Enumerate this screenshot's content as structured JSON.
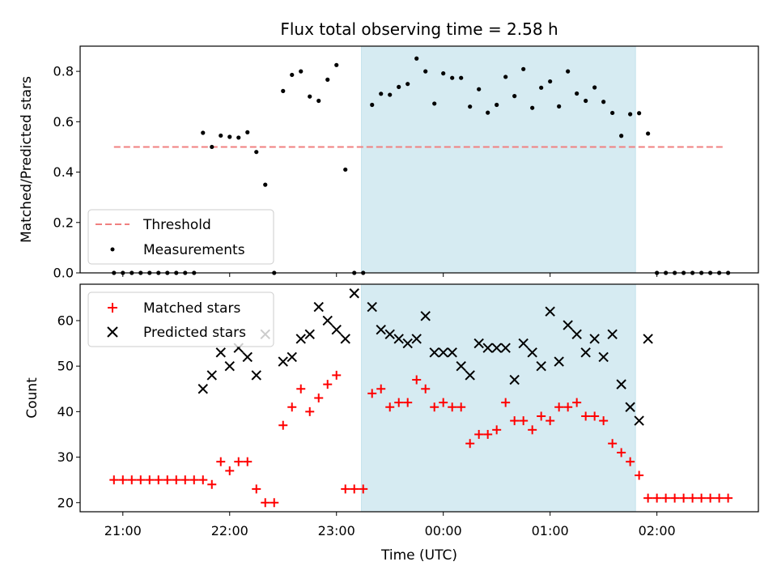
{
  "chart_data": [
    {
      "type": "scatter",
      "title": "Flux total observing time = 2.58 h",
      "xlabel": "",
      "ylabel": "Matched/Predicted stars",
      "ylim": [
        0,
        0.9
      ],
      "y_ticks": [
        "0.0",
        "0.2",
        "0.4",
        "0.6",
        "0.8"
      ],
      "x_range_hours": [
        -3.4,
        2.95
      ],
      "highlight_span": {
        "x_start": "23:14",
        "x_end": "01:48",
        "color": "#add8e6"
      },
      "legend": {
        "position": "lower-left",
        "entries": [
          "Threshold",
          "Measurements"
        ]
      },
      "colors": {
        "threshold": "#f08080",
        "measurements": "#000000",
        "span": "#add8e6"
      },
      "series": [
        {
          "name": "Threshold",
          "style": "dashed-line",
          "x": [
            "20:55",
            "02:38"
          ],
          "y": [
            0.5,
            0.5
          ]
        },
        {
          "name": "Measurements",
          "style": "points",
          "x": [
            "20:55",
            "21:00",
            "21:05",
            "21:10",
            "21:15",
            "21:20",
            "21:25",
            "21:30",
            "21:35",
            "21:40",
            "21:45",
            "21:50",
            "21:55",
            "22:00",
            "22:05",
            "22:10",
            "22:15",
            "22:20",
            "22:25",
            "22:30",
            "22:35",
            "22:40",
            "22:45",
            "22:50",
            "22:55",
            "23:00",
            "23:05",
            "23:10",
            "23:15",
            "23:20",
            "23:25",
            "23:30",
            "23:35",
            "23:40",
            "23:45",
            "23:50",
            "23:55",
            "00:00",
            "00:05",
            "00:10",
            "00:15",
            "00:20",
            "00:25",
            "00:30",
            "00:35",
            "00:40",
            "00:45",
            "00:50",
            "00:55",
            "01:00",
            "01:05",
            "01:10",
            "01:15",
            "01:20",
            "01:25",
            "01:30",
            "01:35",
            "01:40",
            "01:45",
            "01:50",
            "01:55",
            "02:00",
            "02:05",
            "02:10",
            "02:15",
            "02:20",
            "02:25",
            "02:30",
            "02:35",
            "02:40"
          ],
          "y": [
            0,
            0,
            0,
            0,
            0,
            0,
            0,
            0,
            0,
            0,
            0.556,
            0.5,
            0.545,
            0.54,
            0.537,
            0.558,
            0.48,
            0.35,
            0,
            0.722,
            0.786,
            0.8,
            0.7,
            0.683,
            0.767,
            0.825,
            0.41,
            0,
            0,
            0.667,
            0.711,
            0.707,
            0.738,
            0.75,
            0.851,
            0.8,
            0.672,
            0.792,
            0.774,
            0.774,
            0.66,
            0.729,
            0.636,
            0.667,
            0.778,
            0.702,
            0.809,
            0.655,
            0.735,
            0.76,
            0.661,
            0.8,
            0.712,
            0.683,
            0.736,
            0.679,
            0.635,
            0.544,
            0.63,
            0.634,
            0.553,
            0,
            0,
            0,
            0,
            0,
            0,
            0,
            0,
            0
          ]
        }
      ]
    },
    {
      "type": "scatter",
      "title": "",
      "xlabel": "Time (UTC)",
      "ylabel": "Count",
      "ylim": [
        18,
        68
      ],
      "y_ticks": [
        "20",
        "30",
        "40",
        "50",
        "60"
      ],
      "x_ticks": [
        "21:00",
        "22:00",
        "23:00",
        "00:00",
        "01:00",
        "02:00"
      ],
      "x_range_hours": [
        -3.4,
        2.95
      ],
      "highlight_span": {
        "x_start": "23:14",
        "x_end": "01:48",
        "color": "#add8e6"
      },
      "legend": {
        "position": "upper-left",
        "entries": [
          "Matched stars",
          "Predicted stars"
        ]
      },
      "colors": {
        "matched": "#ff0000",
        "predicted": "#000000",
        "span": "#add8e6"
      },
      "series": [
        {
          "name": "Matched stars",
          "marker": "+",
          "x": [
            "20:55",
            "21:00",
            "21:05",
            "21:10",
            "21:15",
            "21:20",
            "21:25",
            "21:30",
            "21:35",
            "21:40",
            "21:45",
            "21:50",
            "21:55",
            "22:00",
            "22:05",
            "22:10",
            "22:15",
            "22:20",
            "22:25",
            "22:30",
            "22:35",
            "22:40",
            "22:45",
            "22:50",
            "22:55",
            "23:00",
            "23:05",
            "23:10",
            "23:15",
            "23:20",
            "23:25",
            "23:30",
            "23:35",
            "23:40",
            "23:45",
            "23:50",
            "23:55",
            "00:00",
            "00:05",
            "00:10",
            "00:15",
            "00:20",
            "00:25",
            "00:30",
            "00:35",
            "00:40",
            "00:45",
            "00:50",
            "00:55",
            "01:00",
            "01:05",
            "01:10",
            "01:15",
            "01:20",
            "01:25",
            "01:30",
            "01:35",
            "01:40",
            "01:45",
            "01:50",
            "01:55",
            "02:00",
            "02:05",
            "02:10",
            "02:15",
            "02:20",
            "02:25",
            "02:30",
            "02:35",
            "02:40"
          ],
          "y": [
            25,
            25,
            25,
            25,
            25,
            25,
            25,
            25,
            25,
            25,
            25,
            24,
            29,
            27,
            29,
            29,
            23,
            20,
            20,
            37,
            41,
            45,
            40,
            43,
            46,
            48,
            23,
            23,
            23,
            44,
            45,
            41,
            42,
            42,
            47,
            45,
            41,
            42,
            41,
            41,
            33,
            35,
            35,
            36,
            42,
            38,
            38,
            36,
            39,
            38,
            41,
            41,
            42,
            39,
            39,
            38,
            33,
            31,
            29,
            26,
            21,
            21,
            21,
            21,
            21,
            21,
            21,
            21,
            21,
            21
          ]
        },
        {
          "name": "Predicted stars",
          "marker": "x",
          "x": [
            "21:45",
            "21:50",
            "21:55",
            "22:00",
            "22:05",
            "22:10",
            "22:15",
            "22:20",
            "22:30",
            "22:35",
            "22:40",
            "22:45",
            "22:50",
            "22:55",
            "23:00",
            "23:05",
            "23:10",
            "23:20",
            "23:25",
            "23:30",
            "23:35",
            "23:40",
            "23:45",
            "23:50",
            "23:55",
            "00:00",
            "00:05",
            "00:10",
            "00:15",
            "00:20",
            "00:25",
            "00:30",
            "00:35",
            "00:40",
            "00:45",
            "00:50",
            "00:55",
            "01:00",
            "01:05",
            "01:10",
            "01:15",
            "01:20",
            "01:25",
            "01:30",
            "01:35",
            "01:40",
            "01:45",
            "01:50",
            "01:55"
          ],
          "y": [
            45,
            48,
            53,
            50,
            54,
            52,
            48,
            57,
            51,
            52,
            56,
            57,
            63,
            60,
            58,
            56,
            66,
            63,
            58,
            57,
            56,
            55,
            56,
            61,
            53,
            53,
            53,
            50,
            48,
            55,
            54,
            54,
            54,
            47,
            55,
            53,
            50,
            62,
            51,
            59,
            57,
            53,
            56,
            52,
            57,
            46,
            41,
            38,
            56
          ]
        }
      ]
    }
  ]
}
